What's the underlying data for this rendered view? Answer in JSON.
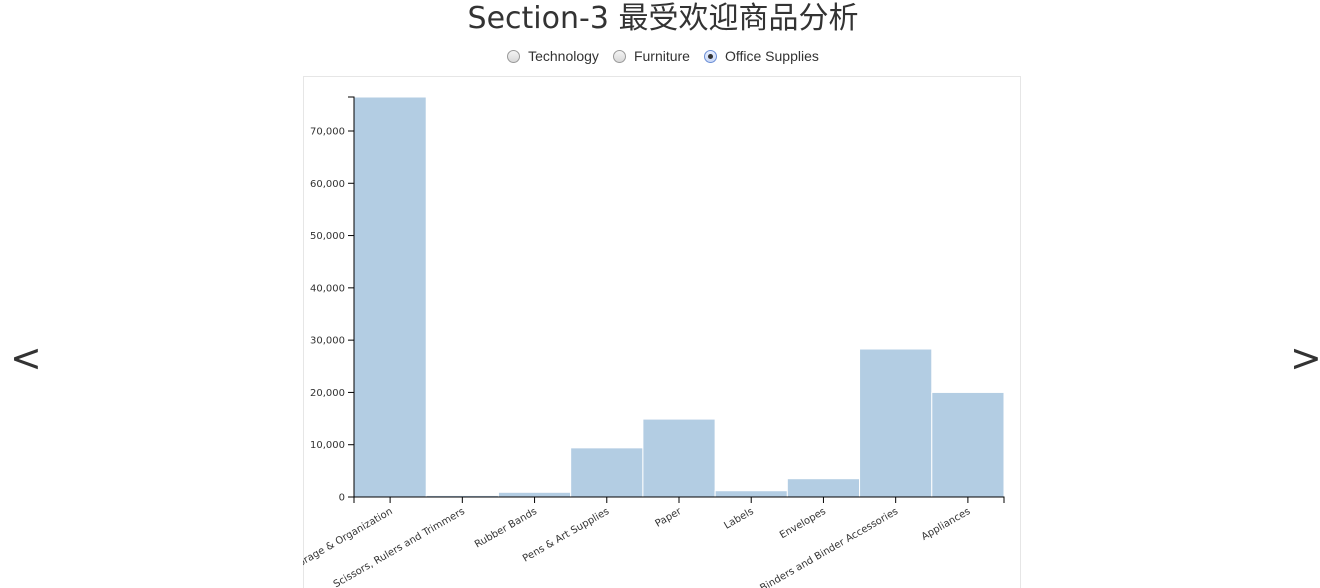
{
  "page": {
    "title": "Section-3 最受欢迎商品分析"
  },
  "category_selector": {
    "options": [
      "Technology",
      "Furniture",
      "Office Supplies"
    ],
    "selected": "Office Supplies"
  },
  "navigation": {
    "prev_label": "<",
    "next_label": ">"
  },
  "colors": {
    "bar_fill": "#b3cde3",
    "bar_stroke": "#ffffff",
    "axis": "#000000",
    "text": "#333333"
  },
  "chart_data": {
    "type": "bar",
    "categories": [
      "Storage & Organization",
      "Scissors, Rulers and Trimmers",
      "Rubber Bands",
      "Pens & Art Supplies",
      "Paper",
      "Labels",
      "Envelopes",
      "Binders and Binder Accessories",
      "Appliances"
    ],
    "values": [
      76500,
      300,
      900,
      9400,
      14900,
      1200,
      3500,
      28300,
      20000
    ],
    "ylim": [
      0,
      76500
    ],
    "yticks": [
      "0",
      "10,000",
      "20,000",
      "30,000",
      "40,000",
      "50,000",
      "60,000",
      "70,000"
    ],
    "ytick_values": [
      0,
      10000,
      20000,
      30000,
      40000,
      50000,
      60000,
      70000
    ],
    "grid": false,
    "title": "",
    "xlabel": "",
    "ylabel": ""
  }
}
